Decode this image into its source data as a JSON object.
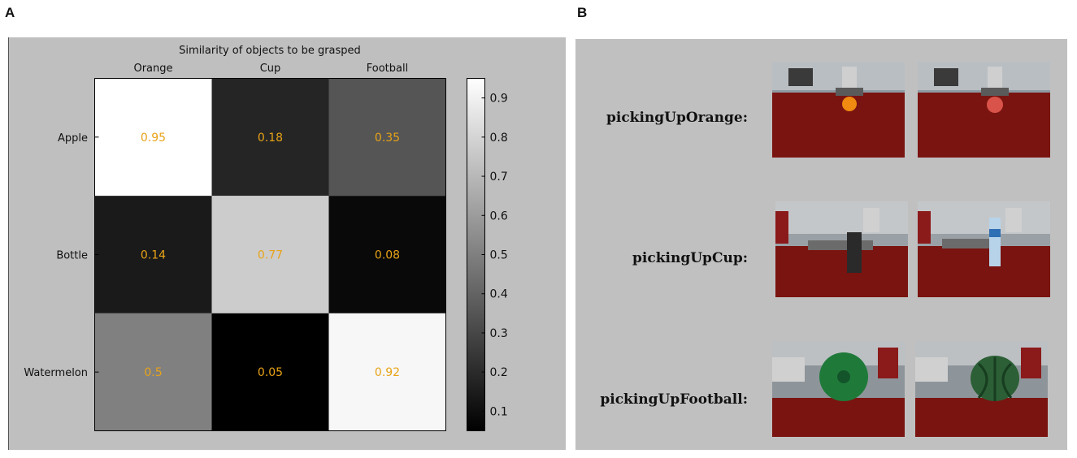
{
  "panels": {
    "a_letter": "A",
    "b_letter": "B"
  },
  "chart_data": {
    "type": "heatmap",
    "title": "Similarity of objects to be grasped",
    "columns": [
      "Orange",
      "Cup",
      "Football"
    ],
    "rows": [
      "Apple",
      "Bottle",
      "Watermelon"
    ],
    "values": [
      [
        0.95,
        0.18,
        0.35
      ],
      [
        0.14,
        0.77,
        0.08
      ],
      [
        0.5,
        0.05,
        0.92
      ]
    ],
    "value_labels": [
      [
        "0.95",
        "0.18",
        "0.35"
      ],
      [
        "0.14",
        "0.77",
        "0.08"
      ],
      [
        "0.5",
        "0.05",
        "0.92"
      ]
    ],
    "colormap": "gray",
    "vmin": 0.05,
    "vmax": 0.95,
    "colorbar_ticks": [
      "0.9",
      "0.8",
      "0.7",
      "0.6",
      "0.5",
      "0.4",
      "0.3",
      "0.2",
      "0.1"
    ],
    "colorbar_tick_values": [
      0.9,
      0.8,
      0.7,
      0.6,
      0.5,
      0.4,
      0.3,
      0.2,
      0.1
    ],
    "annotation_color": "#e8a317",
    "background_color": "#bfbfbf"
  },
  "photos": {
    "rows": [
      {
        "label": "pickingUpOrange:",
        "object": "orange",
        "alt_object": "apple"
      },
      {
        "label": "pickingUpCup:",
        "object": "cup",
        "alt_object": "bottle"
      },
      {
        "label": "pickingUpFootball:",
        "object": "football",
        "alt_object": "watermelon"
      }
    ]
  }
}
